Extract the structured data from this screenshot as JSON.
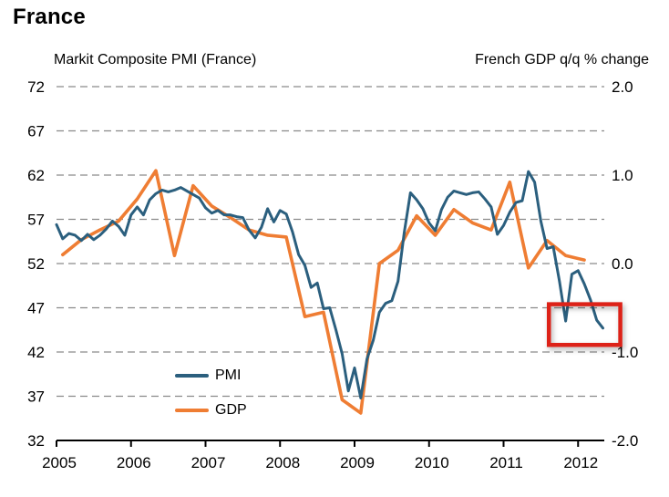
{
  "page_title": "France",
  "axis_titles": {
    "left": "Markit Composite PMI (France)",
    "right": "French GDP q/q % change"
  },
  "legend": {
    "pmi": "PMI",
    "gdp": "GDP"
  },
  "colors": {
    "pmi_line": "#2b5f7e",
    "gdp_line": "#ef7d33",
    "highlight_box": "#dd2218",
    "gridline": "#8a8a8a",
    "axis": "#000000",
    "text": "#000000",
    "background": "#ffffff"
  },
  "chart_data": {
    "type": "line",
    "title": "France",
    "left_axis": {
      "label": "Markit Composite PMI (France)",
      "tick_labels": [
        "72",
        "67",
        "62",
        "57",
        "52",
        "47",
        "42",
        "37",
        "32"
      ],
      "tick_values": [
        72,
        67,
        62,
        57,
        52,
        47,
        42,
        37,
        32
      ],
      "range": [
        32,
        72
      ],
      "grid": "dashed horizontal"
    },
    "right_axis": {
      "label": "French GDP q/q % change",
      "tick_labels": [
        "2.0",
        "1.0",
        "0.0",
        "-1.0",
        "-2.0"
      ],
      "tick_values": [
        2.0,
        1.0,
        0.0,
        -1.0,
        -2.0
      ],
      "tick_pmi_equivalents": [
        72,
        62,
        52,
        42,
        32
      ],
      "range": [
        -2.0,
        2.0
      ]
    },
    "x_axis": {
      "year_labels": [
        "2005",
        "2006",
        "2007",
        "2008",
        "2009",
        "2010",
        "2011",
        "2012"
      ],
      "start": "2005-01",
      "end": "2012-05"
    },
    "legend_position": "inside lower-left",
    "series": [
      {
        "name": "PMI",
        "axis": "left",
        "frequency": "monthly",
        "start": "2005-01",
        "values": [
          56.4,
          54.8,
          55.4,
          55.2,
          54.6,
          55.3,
          54.7,
          55.2,
          55.9,
          56.8,
          56.2,
          55.2,
          57.5,
          58.4,
          57.5,
          59.2,
          59.9,
          60.3,
          60.1,
          60.3,
          60.6,
          60.2,
          59.8,
          59.4,
          58.3,
          57.7,
          58.0,
          57.5,
          57.5,
          57.3,
          57.2,
          55.8,
          54.9,
          56.1,
          58.2,
          56.7,
          58.0,
          57.6,
          55.6,
          53.0,
          51.8,
          49.3,
          49.8,
          46.9,
          47.0,
          44.5,
          41.8,
          37.6,
          40.2,
          36.8,
          41.2,
          43.3,
          46.5,
          47.5,
          47.8,
          50.0,
          55.5,
          60.0,
          59.2,
          58.2,
          56.6,
          55.7,
          58.1,
          59.5,
          60.2,
          60.0,
          59.8,
          60.0,
          60.1,
          59.3,
          58.4,
          55.3,
          56.3,
          57.8,
          58.9,
          59.1,
          62.4,
          61.2,
          56.8,
          53.7,
          53.9,
          50.0,
          45.5,
          50.8,
          51.2,
          49.7,
          47.9,
          45.6,
          44.7
        ]
      },
      {
        "name": "GDP",
        "axis": "right",
        "frequency": "quarterly",
        "start": "2005-Q1",
        "values": [
          0.1,
          0.27,
          0.38,
          0.48,
          0.73,
          1.05,
          0.09,
          0.88,
          0.65,
          0.52,
          0.38,
          0.32,
          0.3,
          -0.6,
          -0.55,
          -1.54,
          -1.69,
          0.0,
          0.15,
          0.54,
          0.32,
          0.61,
          0.46,
          0.38,
          0.92,
          -0.05,
          0.26,
          0.09,
          0.04
        ]
      }
    ],
    "annotation": {
      "type": "highlight-box",
      "series": "PMI",
      "month_index_range": [
        79.3,
        90.8
      ],
      "pmi_value_range": [
        42.8,
        47.4
      ]
    }
  }
}
